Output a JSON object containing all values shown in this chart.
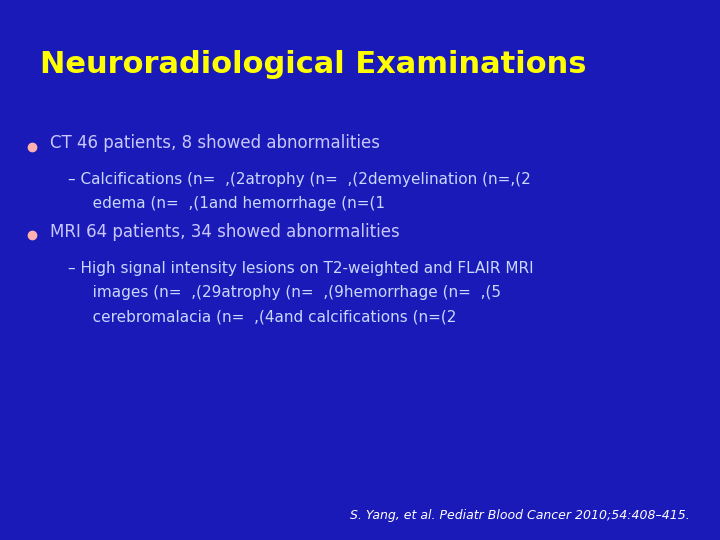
{
  "title": "Neuroradiological Examinations",
  "title_color": "#FFFF00",
  "title_fontsize": 22,
  "background_color": "#1a1ab8",
  "bullet_color": "#FFB0B0",
  "bullet1_text": "CT 46 patients, 8 showed abnormalities",
  "bullet1_color": "#C8C8FF",
  "dash1_line1": "– Calcifications (n=  ,(2atrophy (n=  ,(2demyelination (n=,(2",
  "dash1_line2": "   edema (n=  ,(1and hemorrhage (n=(1",
  "dash1_color": "#C8D8FF",
  "bullet2_text": "MRI 64 patients, 34 showed abnormalities",
  "bullet2_color": "#C8C8FF",
  "dash2_line1": "– High signal intensity lesions on T2-weighted and FLAIR MRI",
  "dash2_line2": "   images (n=  ,(29atrophy (n=  ,(9hemorrhage (n=  ,(5",
  "dash2_line3": "   cerebromalacia (n=  ,(4and calcifications (n=(2",
  "dash2_color": "#C8D8FF",
  "citation": "S. Yang, et al. Pediatr Blood Cancer 2010;54:408–415.",
  "citation_color": "#FFFFFF",
  "citation_fontsize": 9,
  "figwidth": 7.2,
  "figheight": 5.4,
  "dpi": 100
}
